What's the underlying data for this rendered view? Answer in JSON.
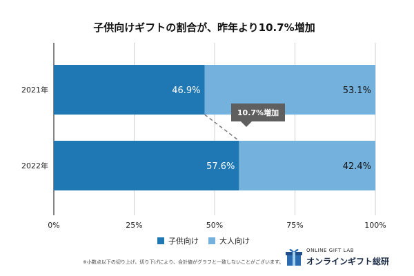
{
  "chart_data": {
    "type": "bar",
    "orientation": "horizontal",
    "stacked": true,
    "title": "子供向けギフトの割合が、昨年より10.7%増加",
    "categories": [
      "2021年",
      "2022年"
    ],
    "series": [
      {
        "name": "子供向け",
        "values": [
          46.9,
          57.6
        ],
        "labels": [
          "46.9%",
          "57.6%"
        ],
        "color": "#1f77b4"
      },
      {
        "name": "大人向け",
        "values": [
          53.1,
          42.4
        ],
        "labels": [
          "53.1%",
          "42.4%"
        ],
        "color": "#74b1dc"
      }
    ],
    "xlim": [
      0,
      100
    ],
    "x_ticks": [
      0,
      25,
      50,
      75,
      100
    ],
    "x_tick_labels": [
      "0%",
      "25%",
      "50%",
      "75%",
      "100%"
    ],
    "grid": true,
    "legend_position": "bottom",
    "annotation": {
      "text": "10.7%増加"
    }
  },
  "footnote": "※小数点以下の切り上げ、切り下げにより、合計値がグラフと一致しないことがございます。",
  "brand": {
    "sub": "ONLINE GIFT LAB",
    "name": "オンラインギフト総研"
  },
  "colors": {
    "child": "#1f77b4",
    "adult": "#74b1dc",
    "annotation_bg": "#5f5f5f",
    "grid": "#d0d0d0"
  }
}
